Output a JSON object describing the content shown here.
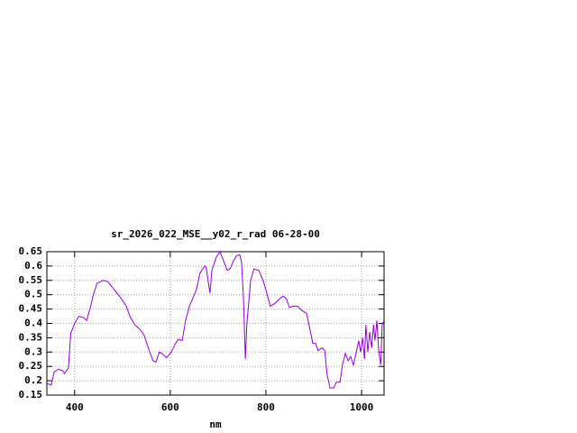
{
  "chart_data": {
    "type": "line",
    "title": "sr_2026_022_MSE__y02_r_rad 06-28-00",
    "x_label": "nm",
    "x": [
      342,
      351,
      357,
      366,
      375,
      379,
      387,
      392,
      400,
      409,
      419,
      425,
      432,
      440,
      447,
      460,
      470,
      479,
      489,
      498,
      508,
      517,
      526,
      536,
      545,
      555,
      564,
      570,
      577,
      583,
      592,
      602,
      611,
      617,
      625,
      632,
      640,
      649,
      655,
      662,
      672,
      675,
      683,
      687,
      696,
      704,
      711,
      719,
      725,
      730,
      738,
      745,
      749,
      753,
      757,
      760,
      768,
      775,
      785,
      794,
      802,
      809,
      819,
      828,
      836,
      843,
      849,
      857,
      866,
      875,
      885,
      892,
      898,
      904,
      909,
      917,
      923,
      928,
      934,
      942,
      947,
      955,
      960,
      966,
      972,
      977,
      983,
      989,
      994,
      998,
      1002,
      1006,
      1009,
      1013,
      1017,
      1021,
      1025,
      1028,
      1032,
      1036,
      1040,
      1043,
      1047
    ],
    "series": [
      {
        "color": "#9400d3",
        "values": [
          0.19,
          0.185,
          0.23,
          0.24,
          0.235,
          0.225,
          0.245,
          0.365,
          0.4,
          0.425,
          0.42,
          0.41,
          0.45,
          0.505,
          0.54,
          0.55,
          0.545,
          0.525,
          0.505,
          0.485,
          0.46,
          0.42,
          0.395,
          0.38,
          0.36,
          0.31,
          0.27,
          0.265,
          0.3,
          0.295,
          0.28,
          0.3,
          0.33,
          0.345,
          0.34,
          0.41,
          0.46,
          0.495,
          0.52,
          0.575,
          0.6,
          0.595,
          0.505,
          0.585,
          0.63,
          0.65,
          0.62,
          0.585,
          0.59,
          0.61,
          0.635,
          0.64,
          0.615,
          0.49,
          0.275,
          0.395,
          0.55,
          0.59,
          0.585,
          0.55,
          0.505,
          0.46,
          0.47,
          0.485,
          0.495,
          0.485,
          0.455,
          0.46,
          0.46,
          0.445,
          0.435,
          0.38,
          0.33,
          0.33,
          0.305,
          0.315,
          0.305,
          0.22,
          0.175,
          0.175,
          0.195,
          0.195,
          0.255,
          0.295,
          0.27,
          0.285,
          0.255,
          0.3,
          0.34,
          0.3,
          0.35,
          0.275,
          0.395,
          0.3,
          0.37,
          0.315,
          0.395,
          0.34,
          0.41,
          0.3,
          0.255,
          0.395,
          0.41
        ]
      }
    ],
    "xlim": [
      342,
      1047
    ],
    "ylim": [
      0.15,
      0.65
    ],
    "xticks": [
      400,
      600,
      800,
      1000
    ],
    "yticks": [
      0.15,
      0.2,
      0.25,
      0.3,
      0.35,
      0.4,
      0.45,
      0.5,
      0.55,
      0.6,
      0.65
    ],
    "grid": true
  }
}
